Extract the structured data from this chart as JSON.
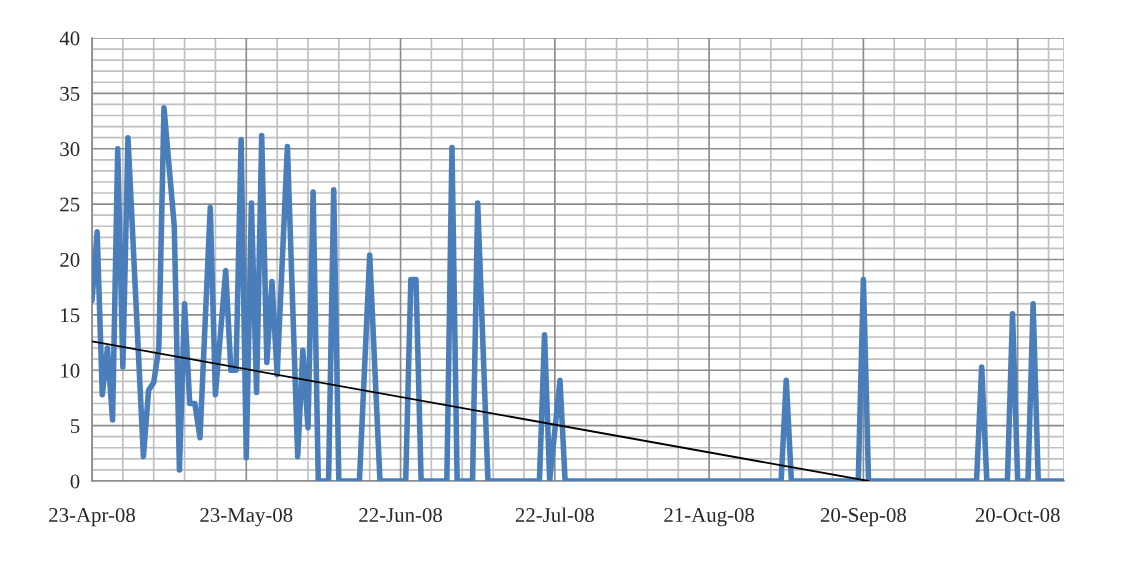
{
  "chart_data": {
    "type": "line",
    "x": [
      "2008-04-23",
      "2008-04-24",
      "2008-04-25",
      "2008-04-26",
      "2008-04-27",
      "2008-04-28",
      "2008-04-29",
      "2008-04-30",
      "2008-05-03",
      "2008-05-04",
      "2008-05-05",
      "2008-05-06",
      "2008-05-07",
      "2008-05-09",
      "2008-05-10",
      "2008-05-11",
      "2008-05-12",
      "2008-05-13",
      "2008-05-14",
      "2008-05-16",
      "2008-05-17",
      "2008-05-19",
      "2008-05-20",
      "2008-05-21",
      "2008-05-22",
      "2008-05-23",
      "2008-05-24",
      "2008-05-25",
      "2008-05-26",
      "2008-05-27",
      "2008-05-28",
      "2008-05-29",
      "2008-05-31",
      "2008-06-02",
      "2008-06-03",
      "2008-06-04",
      "2008-06-05",
      "2008-06-06",
      "2008-06-08",
      "2008-06-09",
      "2008-06-10",
      "2008-06-14",
      "2008-06-16",
      "2008-06-18",
      "2008-06-23",
      "2008-06-24",
      "2008-06-25",
      "2008-06-26",
      "2008-07-01",
      "2008-07-02",
      "2008-07-03",
      "2008-07-06",
      "2008-07-07",
      "2008-07-09",
      "2008-07-19",
      "2008-07-20",
      "2008-07-21",
      "2008-07-23",
      "2008-07-24",
      "2008-09-04",
      "2008-09-05",
      "2008-09-06",
      "2008-09-19",
      "2008-09-20",
      "2008-09-21",
      "2008-10-12",
      "2008-10-13",
      "2008-10-14",
      "2008-10-18",
      "2008-10-19",
      "2008-10-20",
      "2008-10-22",
      "2008-10-23",
      "2008-10-24",
      "2008-10-29"
    ],
    "series": [
      {
        "color": "#4a7ebb",
        "values": [
          16.3,
          22.5,
          7.8,
          12,
          5.5,
          30,
          10.3,
          31,
          2.2,
          8.2,
          8.9,
          12,
          33.7,
          23,
          1,
          16,
          7,
          7,
          3.9,
          24.7,
          7.8,
          19,
          10,
          10,
          30.8,
          2.1,
          25.1,
          8,
          31.2,
          10.7,
          18,
          9.6,
          30.2,
          2.2,
          11.8,
          4.8,
          26.1,
          0,
          0,
          26.3,
          0,
          0,
          20.4,
          0,
          0,
          18.2,
          18.2,
          0,
          0,
          30.1,
          0,
          0,
          25.1,
          0,
          0,
          13.2,
          0,
          9.1,
          0,
          0,
          9.1,
          0,
          0,
          18.2,
          0,
          0,
          10.3,
          0,
          0,
          15.1,
          0,
          0,
          16,
          0,
          0
        ]
      },
      {
        "type": "line",
        "color": "#000000",
        "x": [
          "2008-04-23",
          "2008-09-21"
        ],
        "values": [
          12.6,
          0
        ]
      }
    ],
    "xlim": [
      "2008-04-23",
      "2008-10-29"
    ],
    "xticks": [
      {
        "value": "2008-04-23",
        "label": "23-Apr-08"
      },
      {
        "value": "2008-05-23",
        "label": "23-May-08"
      },
      {
        "value": "2008-06-22",
        "label": "22-Jun-08"
      },
      {
        "value": "2008-07-22",
        "label": "22-Jul-08"
      },
      {
        "value": "2008-08-21",
        "label": "21-Aug-08"
      },
      {
        "value": "2008-09-20",
        "label": "20-Sep-08"
      },
      {
        "value": "2008-10-20",
        "label": "20-Oct-08"
      }
    ],
    "ylim": [
      0,
      40
    ],
    "yticks": [
      0,
      5,
      10,
      15,
      20,
      25,
      30,
      35,
      40
    ],
    "grid": true,
    "legend": false
  }
}
